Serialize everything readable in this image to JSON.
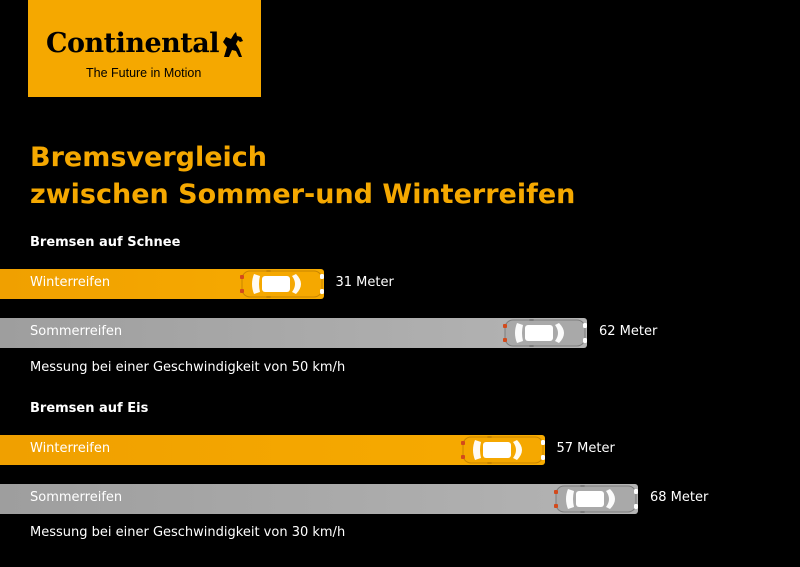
{
  "brand": {
    "name": "Continental",
    "tagline": "The Future in Motion",
    "color": "#f5a800"
  },
  "title_lines": [
    "Bremsvergleich",
    "zwischen Sommer-und Winterreifen"
  ],
  "colors": {
    "winter": "#f5a800",
    "summer": "#a8a8a8",
    "background": "#000000"
  },
  "chart_data": [
    {
      "type": "bar",
      "orientation": "horizontal",
      "title": "Bremsen auf Schnee",
      "note": "Messung bei einer Geschwindigkeit von 50 km/h",
      "categories": [
        "Winterreifen",
        "Sommerreifen"
      ],
      "values": [
        31,
        62
      ],
      "value_labels": [
        "31 Meter",
        "62 Meter"
      ],
      "unit": "Meter"
    },
    {
      "type": "bar",
      "orientation": "horizontal",
      "title": "Bremsen auf Eis",
      "note": "Messung bei einer Geschwindigkeit von 30 km/h",
      "categories": [
        "Winterreifen",
        "Sommerreifen"
      ],
      "values": [
        57,
        68
      ],
      "value_labels": [
        "57 Meter",
        "68 Meter"
      ],
      "unit": "Meter"
    }
  ]
}
